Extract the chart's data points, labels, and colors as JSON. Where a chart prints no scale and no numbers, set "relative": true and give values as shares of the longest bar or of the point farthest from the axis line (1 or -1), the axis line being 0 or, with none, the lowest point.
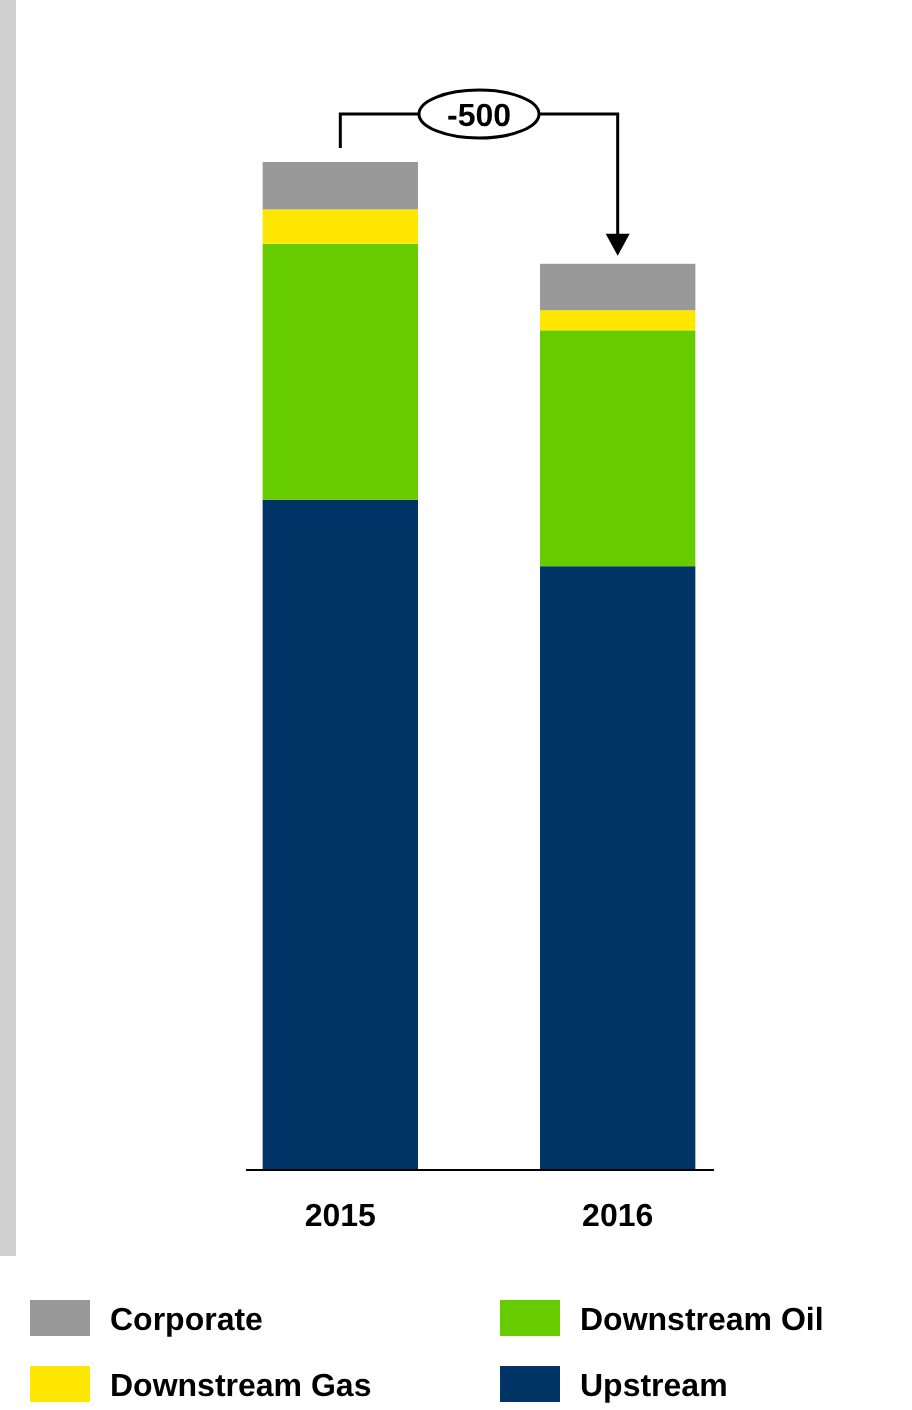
{
  "chart_data": {
    "type": "bar",
    "stacked": true,
    "relative": true,
    "categories": [
      "2015",
      "2016"
    ],
    "series": [
      {
        "name": "Upstream",
        "color": "#003366",
        "values": [
          0.665,
          0.599
        ]
      },
      {
        "name": "Downstream Oil",
        "color": "#66cc00",
        "values": [
          0.254,
          0.234
        ]
      },
      {
        "name": "Downstream Gas",
        "color": "#ffe600",
        "values": [
          0.034,
          0.02
        ]
      },
      {
        "name": "Corporate",
        "color": "#999999",
        "values": [
          0.047,
          0.046
        ]
      }
    ],
    "annotations": [
      "-500"
    ],
    "legend": "bottom"
  }
}
